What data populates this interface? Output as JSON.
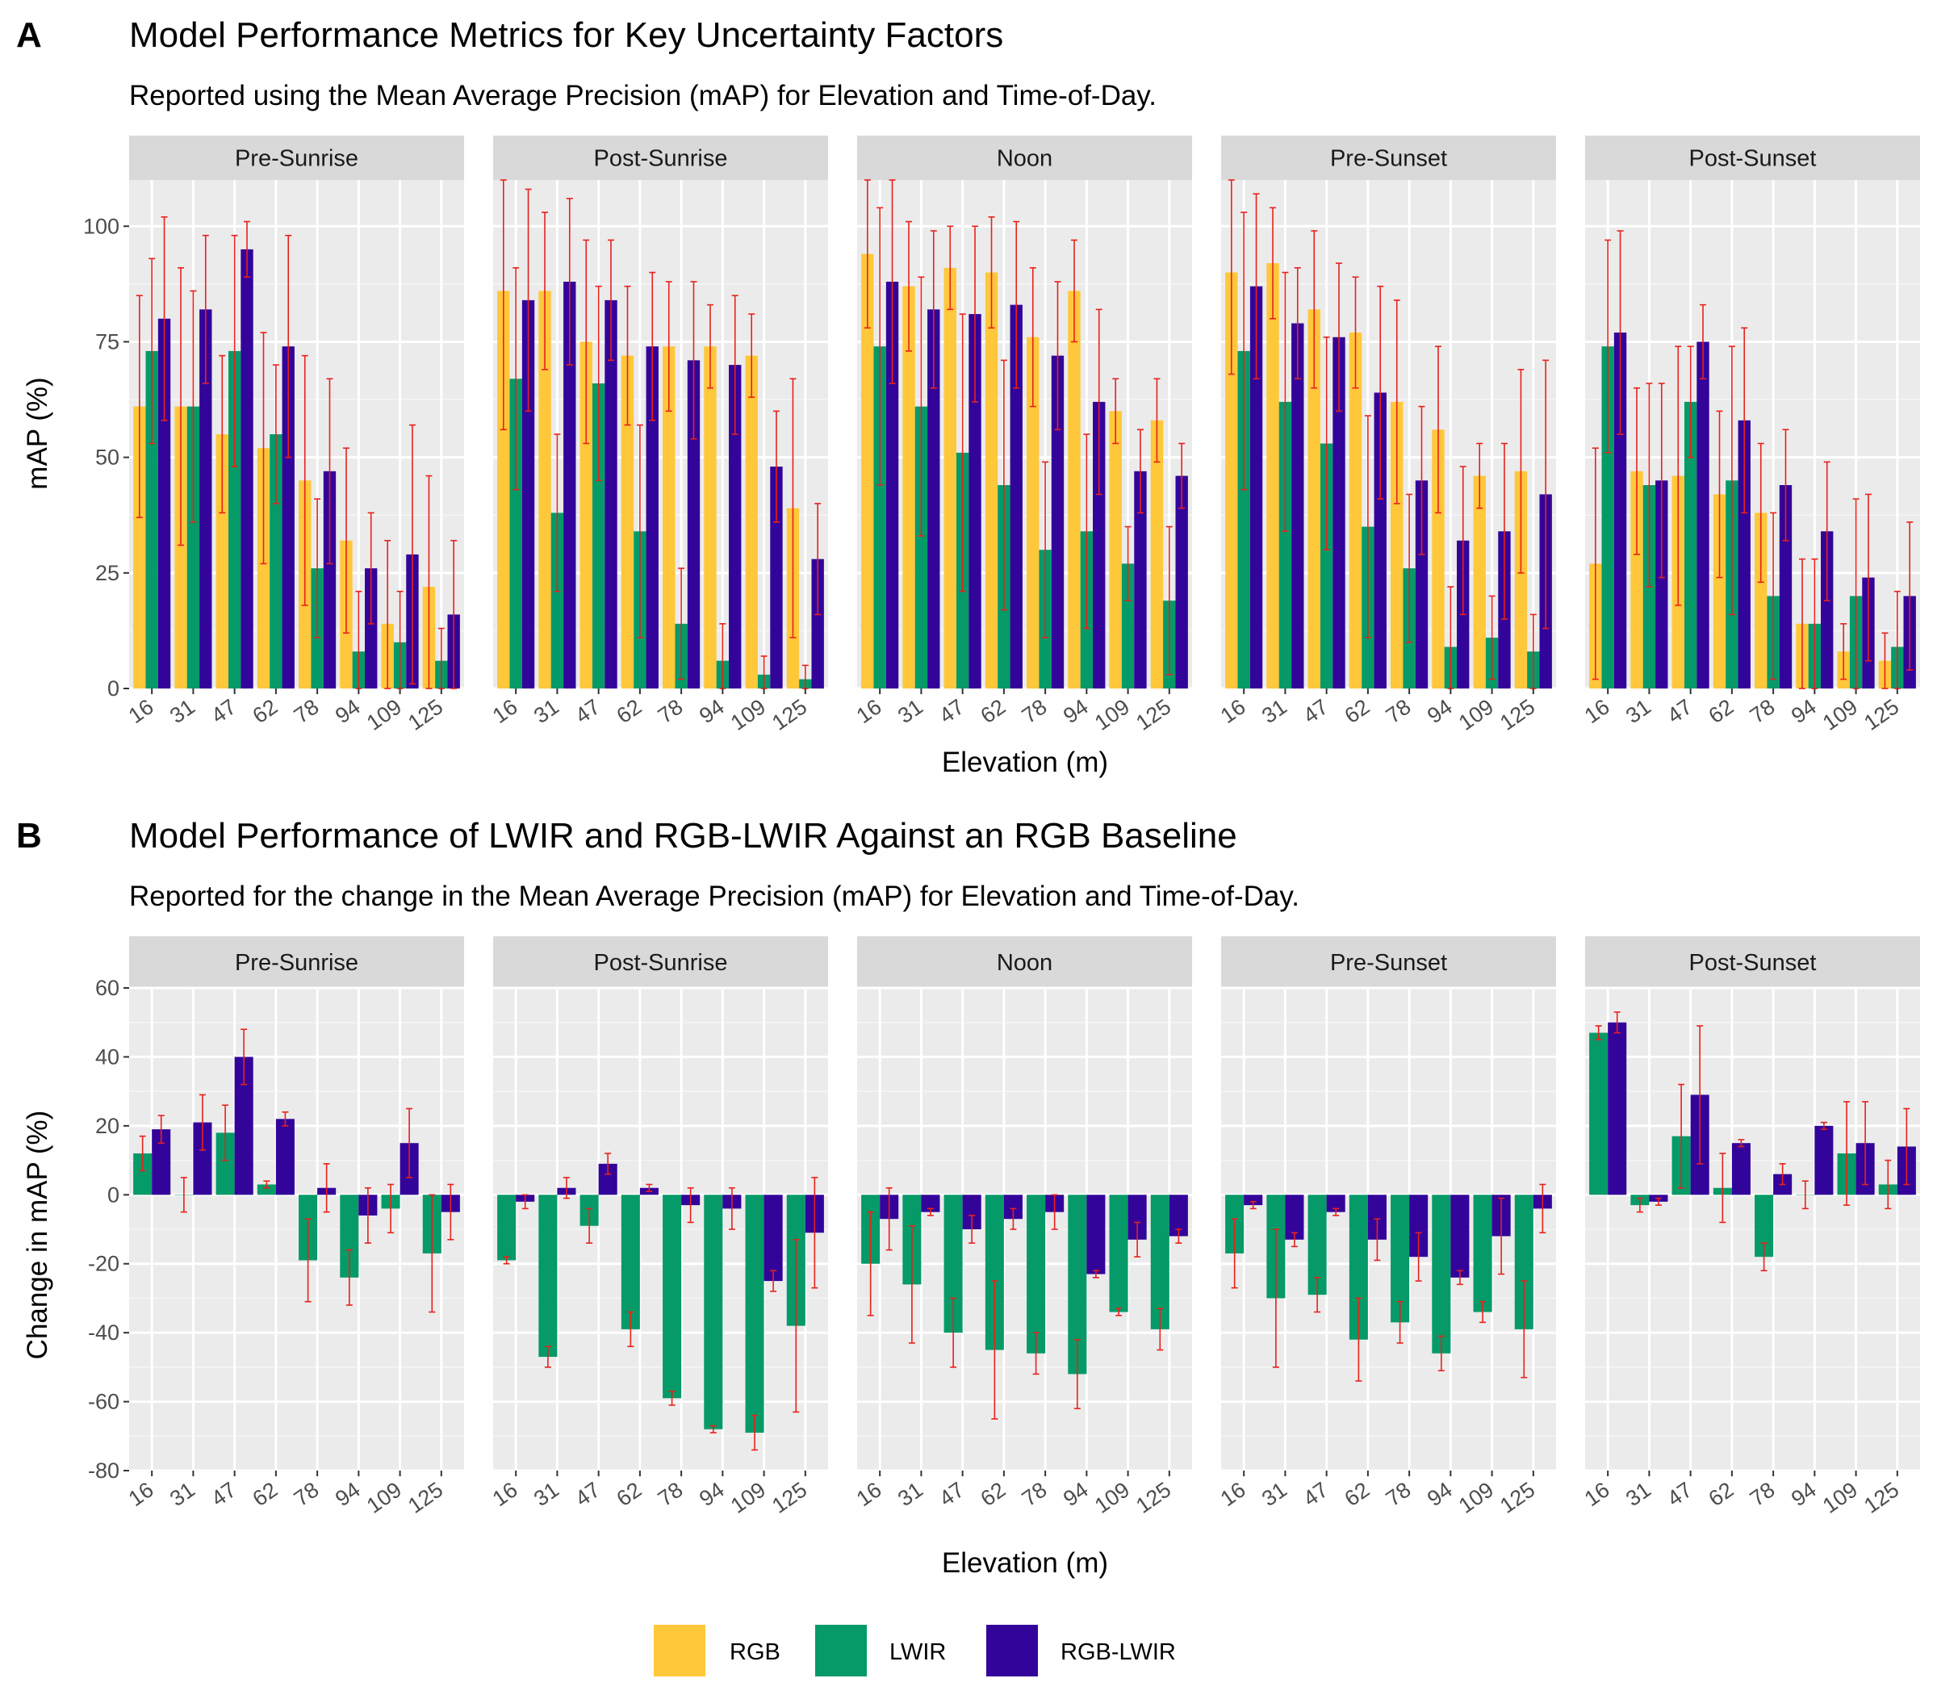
{
  "panels": [
    {
      "letter": "A",
      "title": "Model Performance Metrics for Key Uncertainty Factors",
      "subtitle": "Reported using the Mean Average Precision (mAP) for Elevation and Time-of-Day.",
      "xlabel": "Elevation (m)",
      "ylabel": "mAP (%)"
    },
    {
      "letter": "B",
      "title": "Model Performance of LWIR and RGB-LWIR Against an RGB Baseline",
      "subtitle": "Reported for the change in the Mean Average Precision (mAP) for Elevation and Time-of-Day.",
      "xlabel": "Elevation (m)",
      "ylabel": "Change in mAP (%)"
    }
  ],
  "legend": [
    {
      "label": "RGB",
      "color": "#FFC73A"
    },
    {
      "label": "LWIR",
      "color": "#069A68"
    },
    {
      "label": "RGB-LWIR",
      "color": "#33049A"
    }
  ],
  "chart_data": [
    {
      "type": "bar",
      "title": "Model Performance Metrics for Key Uncertainty Factors",
      "subtitle": "Reported using the Mean Average Precision (mAP) for Elevation and Time-of-Day.",
      "xlabel": "Elevation (m)",
      "ylabel": "mAP (%)",
      "ylim": [
        0,
        110
      ],
      "yticks": [
        0,
        25,
        50,
        75,
        100
      ],
      "categories": [
        "16",
        "31",
        "47",
        "62",
        "78",
        "94",
        "109",
        "125"
      ],
      "facets": [
        "Pre-Sunrise",
        "Post-Sunrise",
        "Noon",
        "Pre-Sunset",
        "Post-Sunset"
      ],
      "error_bar_color": "#E8211B",
      "series": [
        {
          "name": "RGB",
          "color": "#FFC73A",
          "values": [
            [
              61,
              61,
              55,
              52,
              45,
              32,
              14,
              22
            ],
            [
              86,
              86,
              75,
              72,
              74,
              74,
              72,
              39
            ],
            [
              94,
              87,
              91,
              90,
              76,
              86,
              60,
              58
            ],
            [
              90,
              92,
              82,
              77,
              62,
              56,
              46,
              47
            ],
            [
              27,
              47,
              46,
              42,
              38,
              14,
              8,
              6
            ]
          ],
          "errors": [
            [
              24,
              30,
              17,
              25,
              27,
              20,
              18,
              24
            ],
            [
              30,
              17,
              22,
              15,
              14,
              9,
              9,
              28
            ],
            [
              16,
              14,
              9,
              12,
              15,
              11,
              7,
              9
            ],
            [
              22,
              12,
              17,
              12,
              22,
              18,
              7,
              22
            ],
            [
              25,
              18,
              28,
              18,
              15,
              14,
              6,
              6
            ]
          ]
        },
        {
          "name": "LWIR",
          "color": "#069A68",
          "values": [
            [
              73,
              61,
              73,
              55,
              26,
              8,
              10,
              6
            ],
            [
              67,
              38,
              66,
              34,
              14,
              6,
              3,
              2
            ],
            [
              74,
              61,
              51,
              44,
              30,
              34,
              27,
              19
            ],
            [
              73,
              62,
              53,
              35,
              26,
              9,
              11,
              8
            ],
            [
              74,
              44,
              62,
              45,
              20,
              14,
              20,
              9
            ]
          ],
          "errors": [
            [
              20,
              25,
              25,
              15,
              15,
              13,
              11,
              7
            ],
            [
              24,
              17,
              21,
              23,
              12,
              8,
              4,
              3
            ],
            [
              30,
              28,
              30,
              27,
              19,
              21,
              8,
              16
            ],
            [
              30,
              28,
              23,
              24,
              16,
              13,
              9,
              8
            ],
            [
              23,
              22,
              12,
              29,
              18,
              14,
              21,
              12
            ]
          ]
        },
        {
          "name": "RGB-LWIR",
          "color": "#33049A",
          "values": [
            [
              80,
              82,
              95,
              74,
              47,
              26,
              29,
              16
            ],
            [
              84,
              88,
              84,
              74,
              71,
              70,
              48,
              28
            ],
            [
              88,
              82,
              81,
              83,
              72,
              62,
              47,
              46
            ],
            [
              87,
              79,
              76,
              64,
              45,
              32,
              34,
              42
            ],
            [
              77,
              45,
              75,
              58,
              44,
              34,
              24,
              20
            ]
          ],
          "errors": [
            [
              22,
              16,
              6,
              24,
              20,
              12,
              28,
              16
            ],
            [
              24,
              18,
              13,
              16,
              17,
              15,
              12,
              12
            ],
            [
              22,
              17,
              19,
              18,
              16,
              20,
              9,
              7
            ],
            [
              20,
              12,
              16,
              23,
              16,
              16,
              19,
              29
            ],
            [
              22,
              21,
              8,
              20,
              12,
              15,
              18,
              16
            ]
          ]
        }
      ]
    },
    {
      "type": "bar",
      "title": "Model Performance of LWIR and RGB-LWIR Against an RGB Baseline",
      "subtitle": "Reported for the change in the Mean Average Precision (mAP) for Elevation and Time-of-Day.",
      "xlabel": "Elevation (m)",
      "ylabel": "Change in mAP (%)",
      "ylim": [
        -80,
        60
      ],
      "yticks": [
        -80,
        -60,
        -40,
        -20,
        0,
        20,
        40,
        60
      ],
      "categories": [
        "16",
        "31",
        "47",
        "62",
        "78",
        "94",
        "109",
        "125"
      ],
      "facets": [
        "Pre-Sunrise",
        "Post-Sunrise",
        "Noon",
        "Pre-Sunset",
        "Post-Sunset"
      ],
      "error_bar_color": "#E8211B",
      "series": [
        {
          "name": "LWIR",
          "color": "#069A68",
          "values": [
            [
              12,
              0,
              18,
              3,
              -19,
              -24,
              -4,
              -17
            ],
            [
              -19,
              -47,
              -9,
              -39,
              -59,
              -68,
              -69,
              -38
            ],
            [
              -20,
              -26,
              -40,
              -45,
              -46,
              -52,
              -34,
              -39
            ],
            [
              -17,
              -30,
              -29,
              -42,
              -37,
              -46,
              -34,
              -39
            ],
            [
              47,
              -3,
              17,
              2,
              -18,
              0,
              12,
              3
            ]
          ],
          "errors": [
            [
              5,
              5,
              8,
              1,
              12,
              8,
              7,
              17
            ],
            [
              1,
              3,
              5,
              5,
              2,
              1,
              5,
              25
            ],
            [
              15,
              17,
              10,
              20,
              6,
              10,
              1,
              6
            ],
            [
              10,
              20,
              5,
              12,
              6,
              5,
              3,
              14
            ],
            [
              2,
              2,
              15,
              10,
              4,
              4,
              15,
              7
            ]
          ]
        },
        {
          "name": "RGB-LWIR",
          "color": "#33049A",
          "values": [
            [
              19,
              21,
              40,
              22,
              2,
              -6,
              15,
              -5
            ],
            [
              -2,
              2,
              9,
              2,
              -3,
              -4,
              -25,
              -11
            ],
            [
              -7,
              -5,
              -10,
              -7,
              -5,
              -23,
              -13,
              -12
            ],
            [
              -3,
              -13,
              -5,
              -13,
              -18,
              -24,
              -12,
              -4
            ],
            [
              50,
              -2,
              29,
              15,
              6,
              20,
              15,
              14
            ]
          ],
          "errors": [
            [
              4,
              8,
              8,
              2,
              7,
              8,
              10,
              8
            ],
            [
              2,
              3,
              3,
              1,
              5,
              6,
              3,
              16
            ],
            [
              9,
              1,
              4,
              3,
              5,
              1,
              5,
              2
            ],
            [
              1,
              2,
              1,
              6,
              7,
              2,
              11,
              7
            ],
            [
              3,
              1,
              20,
              1,
              3,
              1,
              12,
              11
            ]
          ]
        }
      ]
    }
  ]
}
